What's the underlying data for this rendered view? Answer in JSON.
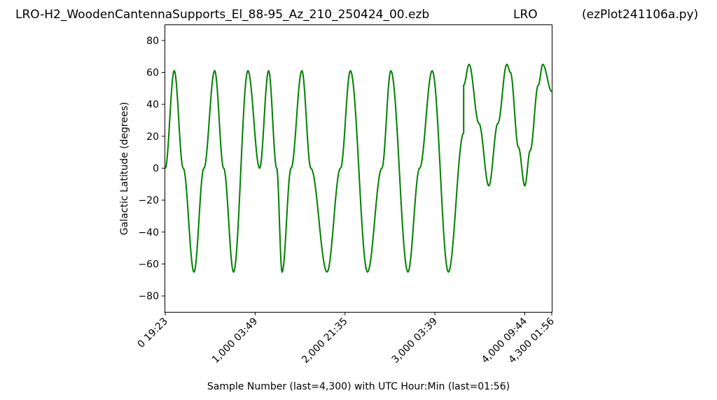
{
  "header": {
    "file_title": "LRO-H2_WoodenCantennaSupports_El_88-95_Az_210_250424_00.ezb",
    "station": "LRO",
    "program": "(ezPlot241106a.py)"
  },
  "chart_data": {
    "type": "line",
    "xlabel": "Sample Number (last=4,300) with UTC Hour:Min (last=01:56)",
    "ylabel": "Galactic Latitude (degrees)",
    "xlim": [
      0,
      4300
    ],
    "ylim": [
      -90,
      90
    ],
    "yticks": [
      80,
      60,
      40,
      20,
      0,
      -20,
      -40,
      -60,
      -80
    ],
    "ytick_labels": [
      "80",
      "60",
      "40",
      "20",
      "0",
      "−20",
      "−40",
      "−60",
      "−80"
    ],
    "xticks": [
      {
        "value": 0,
        "label": "0  19:23"
      },
      {
        "value": 1000,
        "label": "1,000  03:49"
      },
      {
        "value": 2000,
        "label": "2,000  21:35"
      },
      {
        "value": 3000,
        "label": "3,000  03:39"
      },
      {
        "value": 4000,
        "label": "4,000  09:44"
      },
      {
        "value": 4300,
        "label": "4,300  01:56"
      }
    ],
    "line_color": "#008000",
    "grid": false,
    "series": [
      {
        "x": [
          0,
          100,
          200,
          320,
          430,
          550,
          650,
          760,
          920,
          1050,
          1150,
          1240,
          1300,
          1400,
          1520,
          1620,
          1800,
          1950,
          2060,
          2250,
          2410,
          2510,
          2700,
          2830,
          2970,
          3150,
          3320,
          3320,
          3380,
          3490,
          3600,
          3700,
          3800,
          3840,
          3930,
          4000,
          4060,
          4150,
          4200,
          4300
        ],
        "y": [
          0,
          61,
          0,
          -65,
          0,
          61,
          0,
          -65,
          61,
          0,
          61,
          0,
          -65,
          0,
          61,
          0,
          -65,
          0,
          61,
          -65,
          0,
          61,
          -65,
          0,
          61,
          -65,
          22,
          52,
          65,
          28,
          -11,
          28,
          65,
          60,
          13,
          -11,
          11,
          52,
          65,
          48
        ]
      }
    ]
  }
}
